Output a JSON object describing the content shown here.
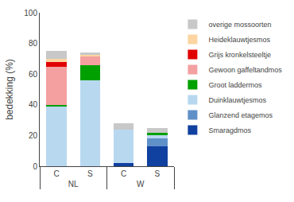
{
  "chart_data": {
    "type": "bar",
    "stacked": true,
    "categories": [
      "C",
      "S",
      "C",
      "S"
    ],
    "group_labels": [
      "NL",
      "NL",
      "W",
      "W"
    ],
    "series": [
      {
        "name": "Smaragdmos",
        "color": "#1040a0",
        "values": [
          0,
          0,
          2,
          13
        ]
      },
      {
        "name": "Glanzend etagemos",
        "color": "#6090c8",
        "values": [
          0,
          0,
          0,
          5
        ]
      },
      {
        "name": "Duinklauwtjesmos",
        "color": "#b8d8f0",
        "values": [
          39,
          56,
          22,
          2
        ]
      },
      {
        "name": "Groot laddermos",
        "color": "#00a000",
        "values": [
          1,
          10,
          0,
          2
        ]
      },
      {
        "name": "Gewoon gaffeltandmos",
        "color": "#f4a0a0",
        "values": [
          25,
          6,
          0,
          0
        ]
      },
      {
        "name": "Grijs kronkelsteeltje",
        "color": "#e00000",
        "values": [
          3,
          0,
          0,
          0
        ]
      },
      {
        "name": "Heideklauwtjesmos",
        "color": "#fcd5a0",
        "values": [
          2,
          1,
          0,
          0
        ]
      },
      {
        "name": "overige mossoorten",
        "color": "#c8c8c8",
        "values": [
          5,
          1,
          4,
          3
        ]
      }
    ],
    "ylabel": "bedekking (%)",
    "ylim": [
      0,
      100
    ],
    "yticks": [
      0,
      20,
      40,
      60,
      80,
      100
    ],
    "grid": false,
    "legend": "right"
  }
}
